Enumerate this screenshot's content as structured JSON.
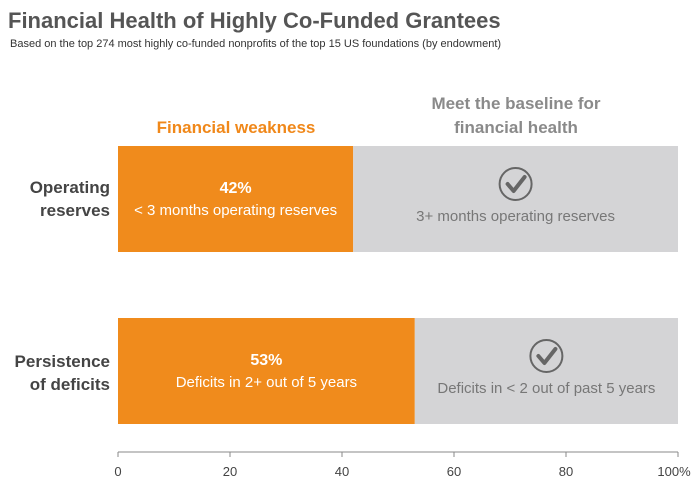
{
  "title": "Financial Health of Highly Co-Funded Grantees",
  "subtitle": "Based on the top 274 most highly co-funded nonprofits of the top 15 US foundations (by endowment)",
  "column_headers": {
    "weakness": "Financial weakness",
    "baseline_line1": "Meet the baseline for",
    "baseline_line2": "financial health"
  },
  "colors": {
    "weakness": "#f08b1c",
    "baseline": "#d4d4d6",
    "axis": "#888888",
    "check": "#666666"
  },
  "icons": {
    "baseline": "check-circle-icon"
  },
  "chart_data": {
    "type": "bar",
    "orientation": "horizontal",
    "stacked": true,
    "xlim": [
      0,
      100
    ],
    "xticks": [
      0,
      20,
      40,
      60,
      80,
      100
    ],
    "xtick_labels": [
      "0",
      "20",
      "40",
      "60",
      "80",
      "100%"
    ],
    "categories": [
      {
        "line1": "Operating",
        "line2": "reserves"
      },
      {
        "line1": "Persistence",
        "line2": "of deficits"
      }
    ],
    "series": [
      {
        "name": "Financial weakness",
        "values": [
          42,
          53
        ],
        "value_labels": [
          "42%",
          "53%"
        ],
        "descriptions": [
          "< 3 months operating reserves",
          "Deficits in 2+ out of 5 years"
        ]
      },
      {
        "name": "Meet the baseline for financial health",
        "values": [
          58,
          47
        ],
        "descriptions": [
          "3+ months operating reserves",
          "Deficits in < 2 out of past 5 years"
        ]
      }
    ]
  }
}
